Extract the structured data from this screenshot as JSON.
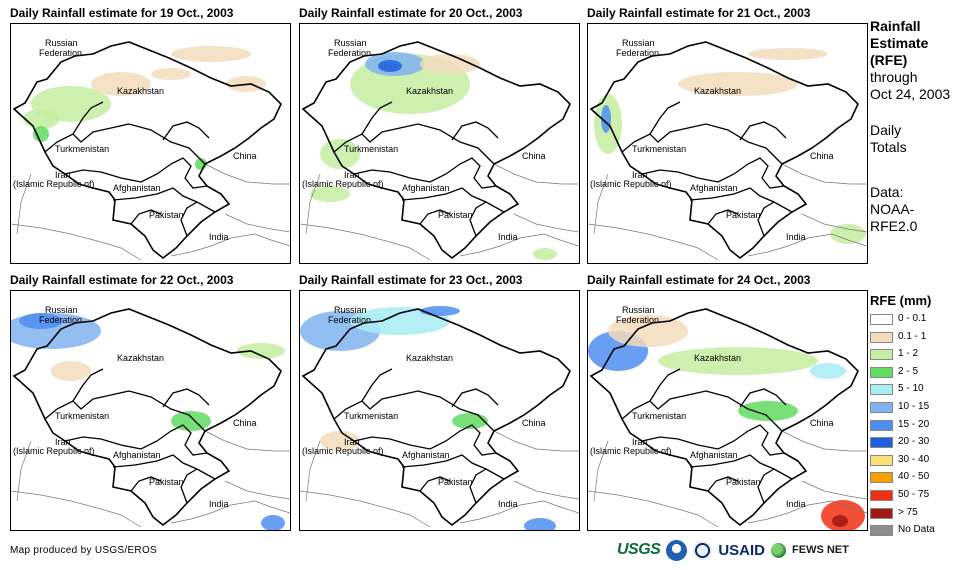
{
  "panels": [
    {
      "title": "Daily Rainfall estimate for 19 Oct., 2003"
    },
    {
      "title": "Daily Rainfall estimate for 20 Oct., 2003"
    },
    {
      "title": "Daily Rainfall estimate for 21 Oct., 2003"
    },
    {
      "title": "Daily Rainfall estimate for 22 Oct., 2003"
    },
    {
      "title": "Daily Rainfall estimate for 23 Oct., 2003"
    },
    {
      "title": "Daily Rainfall estimate for 24 Oct., 2003"
    }
  ],
  "map_labels": {
    "russia_1": "Russian",
    "russia_2": "Federation",
    "kazakhstan": "Kazakhstan",
    "turkmenistan": "Turkmenistan",
    "iran_1": "Iran",
    "iran_2": "(Islamic Republic of)",
    "afghanistan": "Afghanistan",
    "pakistan": "Pakistan",
    "china": "China",
    "india": "India"
  },
  "side_text": {
    "title_1": "Rainfall",
    "title_2": "Estimate",
    "title_3": "(RFE)",
    "through": "through",
    "date": "Oct 24, 2003",
    "daily": "Daily",
    "totals": "Totals",
    "data_label": "Data:",
    "data_src_1": "NOAA-",
    "data_src_2": "RFE2.0"
  },
  "legend": {
    "title": "RFE (mm)",
    "items": [
      {
        "label": "0 - 0.1",
        "color": "#ffffff"
      },
      {
        "label": "0.1 - 1",
        "color": "#f2dcbc"
      },
      {
        "label": "1 - 2",
        "color": "#c6eda0"
      },
      {
        "label": "2 - 5",
        "color": "#5fdc5f"
      },
      {
        "label": "5 - 10",
        "color": "#a8ecf4"
      },
      {
        "label": "10 - 15",
        "color": "#7fb3f0"
      },
      {
        "label": "15 - 20",
        "color": "#4f8ef0"
      },
      {
        "label": "20 - 30",
        "color": "#1f5fe0"
      },
      {
        "label": "30 - 40",
        "color": "#fbe07a"
      },
      {
        "label": "40 - 50",
        "color": "#f5a000"
      },
      {
        "label": "50 - 75",
        "color": "#f03010"
      },
      {
        "label": "> 75",
        "color": "#a01818"
      },
      {
        "label": "No Data",
        "color": "#8c8c8c"
      }
    ]
  },
  "credit": "Map produced by USGS/EROS",
  "logos": {
    "usgs": "USGS",
    "usaid": "USAID",
    "fews": "FEWS NET"
  }
}
